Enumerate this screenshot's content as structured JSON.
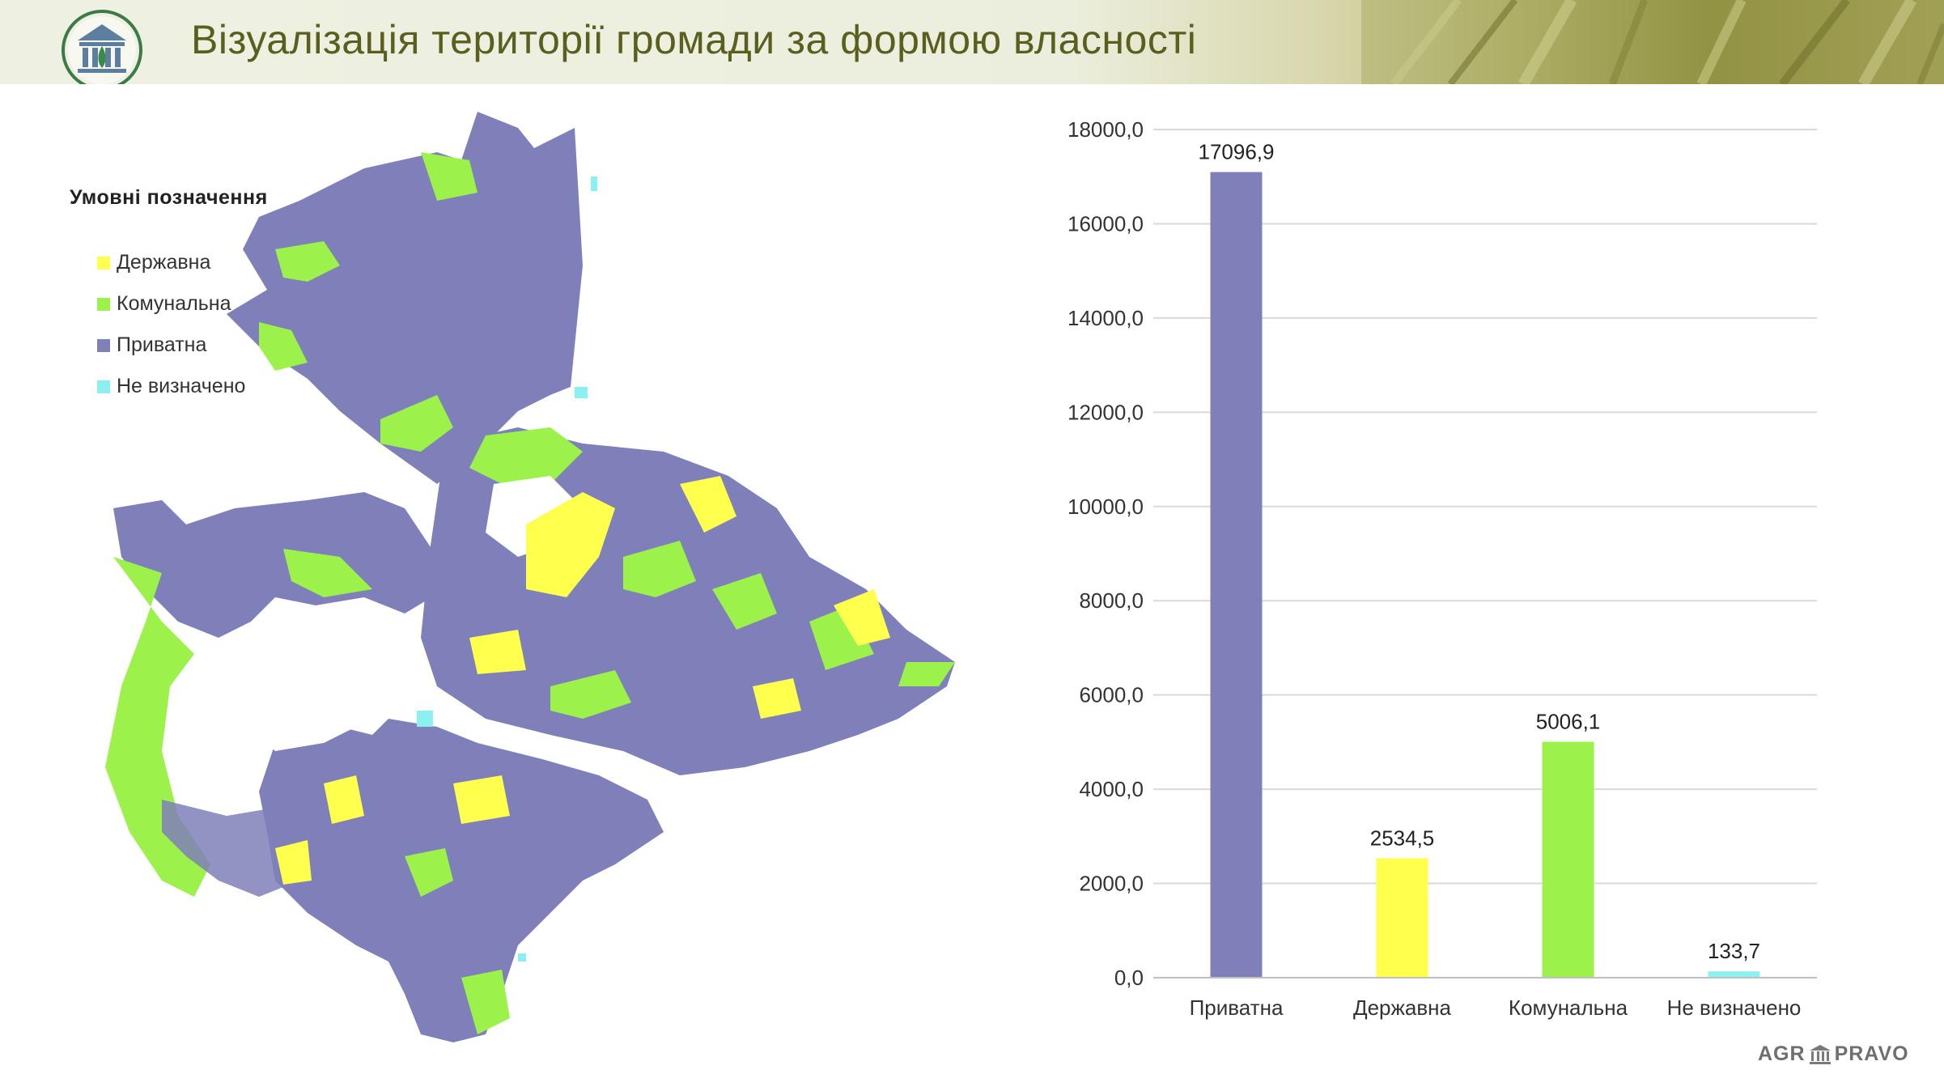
{
  "title": "Візуалізація території громади за формою власності",
  "legend": {
    "title": "Умовні позначення",
    "items": [
      {
        "label": "Державна",
        "color": "#ffff4d"
      },
      {
        "label": "Комунальна",
        "color": "#9cf14b"
      },
      {
        "label": "Приватна",
        "color": "#7f7fb9"
      },
      {
        "label": "Не визначено",
        "color": "#8cf0f0"
      }
    ]
  },
  "footer": {
    "brand_left": "AGR",
    "brand_right": "PRAVO"
  },
  "chart_data": {
    "type": "bar",
    "categories": [
      "Приватна",
      "Державна",
      "Комунальна",
      "Не визначено"
    ],
    "values": [
      17096.9,
      2534.5,
      5006.1,
      133.7
    ],
    "value_labels": [
      "17096,9",
      "2534,5",
      "5006,1",
      "133,7"
    ],
    "colors": [
      "#7f7fb9",
      "#ffff4d",
      "#9cf14b",
      "#8cf0f0"
    ],
    "ylim": [
      0,
      18000
    ],
    "yticks": [
      0,
      2000,
      4000,
      6000,
      8000,
      10000,
      12000,
      14000,
      16000,
      18000
    ],
    "ytick_labels": [
      "0,0",
      "2000,0",
      "4000,0",
      "6000,0",
      "8000,0",
      "10000,0",
      "12000,0",
      "14000,0",
      "16000,0",
      "18000,0"
    ],
    "grid": true,
    "legend": "none"
  }
}
